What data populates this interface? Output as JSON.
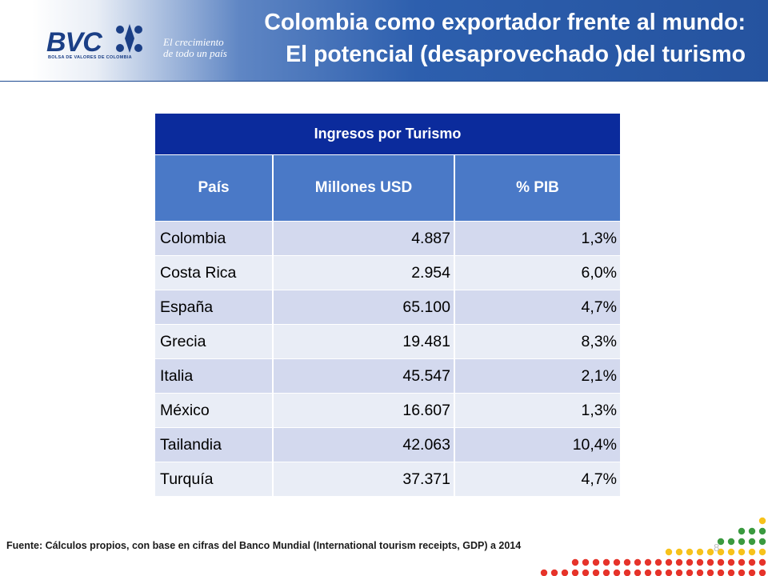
{
  "header": {
    "logo_text": "BVC",
    "logo_subtext": "BOLSA DE VALORES DE COLOMBIA",
    "slogan": [
      "El crecimiento",
      "de todo un país"
    ],
    "title_line1": "Colombia como exportador frente al  mundo:",
    "title_line2": "El potencial (desaprovechado )del turismo"
  },
  "table": {
    "title": "Ingresos por Turismo",
    "columns": [
      "País",
      "Millones USD",
      "% PIB"
    ],
    "rows": [
      [
        "Colombia",
        "4.887",
        "1,3%"
      ],
      [
        "Costa Rica",
        "2.954",
        "6,0%"
      ],
      [
        "España",
        "65.100",
        "4,7%"
      ],
      [
        "Grecia",
        "19.481",
        "8,3%"
      ],
      [
        "Italia",
        "45.547",
        "2,1%"
      ],
      [
        "México",
        "16.607",
        "1,3%"
      ],
      [
        "Tailandia",
        "42.063",
        "10,4%"
      ],
      [
        "Turquía",
        "37.371",
        "4,7%"
      ]
    ]
  },
  "footer": {
    "source": "Fuente: Cálculos propios, con base en cifras del Banco Mundial  (International tourism receipts, GDP) a 2014",
    "page_number": "8"
  },
  "colors": {
    "header_blue": "#25539f",
    "table_title_bg": "#0b2b9c",
    "table_header_bg": "#4a79c7",
    "row_odd": "#d3d9ee",
    "row_even": "#e9edf6",
    "dot_colors": [
      "#e6332a",
      "#f7c21b",
      "#2e7fc8",
      "#3a9a3f"
    ]
  }
}
